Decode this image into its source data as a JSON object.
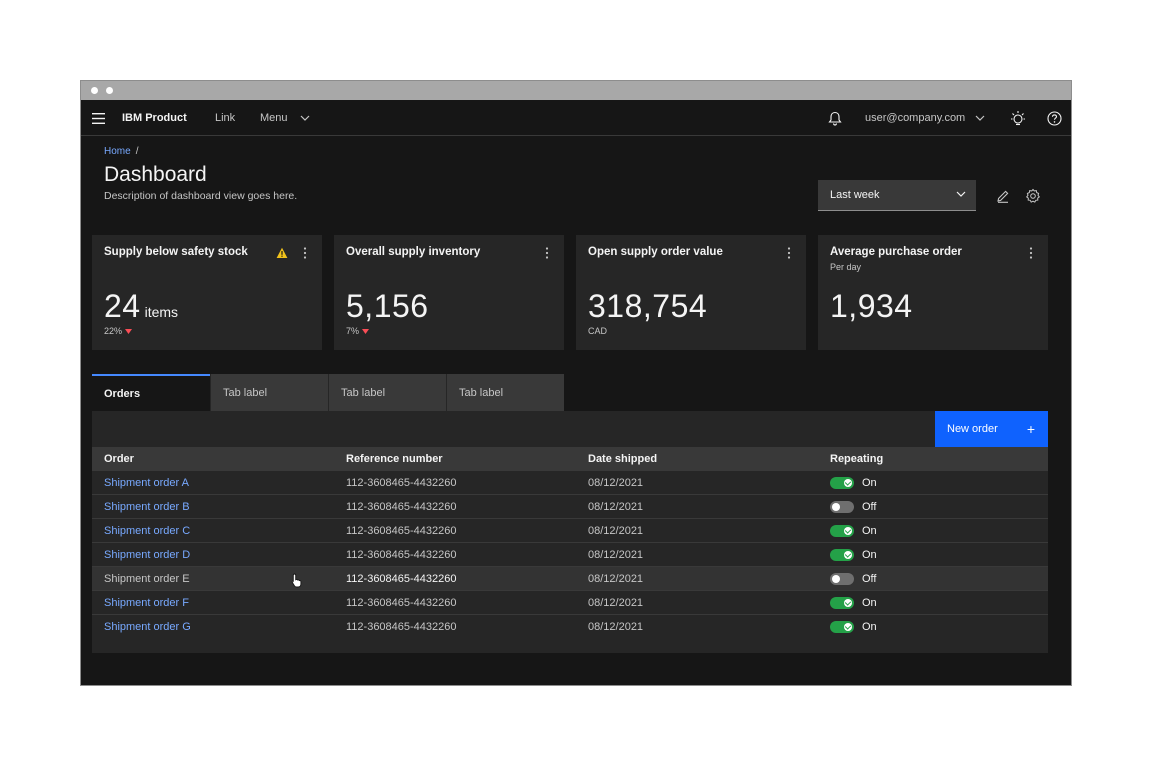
{
  "header": {
    "brand": "IBM Product",
    "nav_link": "Link",
    "nav_menu": "Menu",
    "user": "user@company.com"
  },
  "page": {
    "breadcrumb_home": "Home",
    "breadcrumb_sep": "/",
    "title": "Dashboard",
    "description": "Description of dashboard view goes here.",
    "period_select": "Last week"
  },
  "tiles": [
    {
      "title": "Supply below safety stock",
      "value": "24",
      "unit": "items",
      "delta": "22%",
      "warning": true
    },
    {
      "title": "Overall supply inventory",
      "value": "5,156",
      "delta": "7%"
    },
    {
      "title": "Open supply order value",
      "value": "318,754",
      "caption": "CAD"
    },
    {
      "title": "Average purchase order",
      "subtitle": "Per day",
      "value": "1,934"
    }
  ],
  "tabs": [
    "Orders",
    "Tab label",
    "Tab label",
    "Tab label"
  ],
  "table": {
    "new_order_label": "New order",
    "new_order_icon": "+",
    "columns": [
      "Order",
      "Reference number",
      "Date shipped",
      "Repeating"
    ],
    "rows": [
      {
        "order": "Shipment order A",
        "ref": "112-3608465-4432260",
        "date": "08/12/2021",
        "repeating": "On"
      },
      {
        "order": "Shipment order B",
        "ref": "112-3608465-4432260",
        "date": "08/12/2021",
        "repeating": "Off"
      },
      {
        "order": "Shipment order C",
        "ref": "112-3608465-4432260",
        "date": "08/12/2021",
        "repeating": "On"
      },
      {
        "order": "Shipment order D",
        "ref": "112-3608465-4432260",
        "date": "08/12/2021",
        "repeating": "On"
      },
      {
        "order": "Shipment order E",
        "ref": "112-3608465-4432260",
        "date": "08/12/2021",
        "repeating": "Off"
      },
      {
        "order": "Shipment order F",
        "ref": "112-3608465-4432260",
        "date": "08/12/2021",
        "repeating": "On"
      },
      {
        "order": "Shipment order G",
        "ref": "112-3608465-4432260",
        "date": "08/12/2021",
        "repeating": "On"
      }
    ]
  },
  "colors": {
    "background": "#161616",
    "tile": "#262626",
    "primary": "#0f62fe",
    "link": "#78a9ff",
    "toggle_on": "#24a148",
    "delta_down": "#fa4d56",
    "warning": "#f1c21b"
  },
  "icons": [
    "menu-icon",
    "bell-icon",
    "chevron-down-icon",
    "ibm-idea-icon",
    "help-icon",
    "edit-icon",
    "settings-icon",
    "overflow-menu-icon",
    "warning-icon",
    "caret-down-icon",
    "add-icon",
    "pointer-cursor-icon"
  ]
}
